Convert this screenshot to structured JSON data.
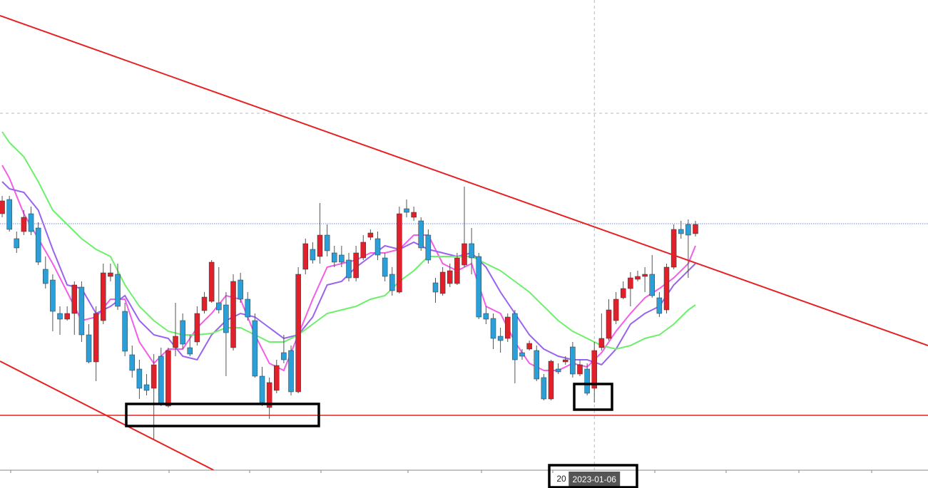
{
  "chart_data": {
    "type": "candlestick",
    "up_color": "#e0202a",
    "down_color": "#2a9fd8",
    "ylim": [
      0,
      685
    ],
    "xlim": [
      -0.3,
      128.2
    ],
    "open": [
      385,
      405,
      350,
      360,
      385,
      365,
      307,
      292,
      245,
      237,
      245,
      282,
      215,
      177,
      235,
      297,
      300,
      248,
      187,
      167,
      145,
      140,
      185,
      115,
      197,
      235,
      197,
      205,
      249,
      262,
      260,
      257,
      197,
      292,
      265,
      235,
      157,
      113,
      137,
      190,
      193,
      135,
      307,
      335,
      325,
      355,
      330,
      327,
      320,
      295,
      323,
      352,
      350,
      323,
      300,
      275,
      392,
      380,
      375,
      355,
      288,
      273,
      287,
      287,
      313,
      343,
      325,
      245,
      238,
      213,
      210,
      245,
      190,
      195,
      193,
      155,
      125,
      167,
      177,
      198,
      160,
      167,
      140,
      197,
      210,
      235,
      267,
      280,
      293,
      297,
      300,
      267,
      250,
      310,
      363,
      370,
      357
    ],
    "high": [
      410,
      410,
      360,
      390,
      395,
      373,
      325,
      300,
      255,
      255,
      290,
      290,
      230,
      255,
      315,
      315,
      315,
      260,
      200,
      180,
      160,
      188,
      197,
      197,
      260,
      245,
      215,
      255,
      275,
      320,
      310,
      275,
      300,
      302,
      275,
      245,
      170,
      155,
      180,
      215,
      200,
      310,
      350,
      345,
      400,
      370,
      340,
      340,
      330,
      340,
      355,
      363,
      360,
      330,
      310,
      395,
      405,
      395,
      380,
      363,
      295,
      310,
      315,
      330,
      423,
      365,
      330,
      255,
      245,
      225,
      245,
      250,
      195,
      207,
      200,
      160,
      180,
      175,
      185,
      205,
      180,
      175,
      205,
      245,
      265,
      275,
      290,
      303,
      305,
      310,
      327,
      275,
      315,
      370,
      375,
      377,
      375
    ],
    "low": [
      380,
      360,
      330,
      355,
      355,
      313,
      280,
      220,
      215,
      235,
      215,
      205,
      175,
      150,
      230,
      290,
      250,
      185,
      155,
      125,
      130,
      67,
      115,
      113,
      185,
      195,
      185,
      200,
      245,
      260,
      245,
      157,
      193,
      260,
      235,
      155,
      115,
      97,
      133,
      175,
      130,
      133,
      300,
      315,
      315,
      325,
      310,
      310,
      290,
      290,
      320,
      348,
      320,
      290,
      270,
      273,
      380,
      375,
      333,
      315,
      260,
      270,
      282,
      285,
      310,
      300,
      237,
      230,
      195,
      190,
      205,
      147,
      180,
      193,
      150,
      123,
      123,
      160,
      173,
      155,
      157,
      130,
      120,
      193,
      207,
      230,
      265,
      255,
      290,
      275,
      267,
      240,
      245,
      307,
      350,
      295,
      353
    ],
    "close": [
      403,
      363,
      337,
      380,
      360,
      317,
      287,
      248,
      237,
      245,
      285,
      215,
      177,
      245,
      302,
      302,
      255,
      192,
      165,
      140,
      137,
      173,
      118,
      193,
      213,
      202,
      188,
      245,
      268,
      317,
      250,
      218,
      290,
      265,
      240,
      157,
      120,
      148,
      172,
      180,
      135,
      300,
      343,
      320,
      355,
      333,
      317,
      317,
      295,
      330,
      345,
      358,
      327,
      297,
      277,
      385,
      387,
      387,
      337,
      320,
      275,
      303,
      305,
      323,
      343,
      323,
      240,
      237,
      210,
      207,
      240,
      180,
      185,
      203,
      153,
      125,
      178,
      163,
      180,
      160,
      173,
      133,
      193,
      210,
      250,
      265,
      280,
      295,
      297,
      300,
      270,
      245,
      310,
      363,
      357,
      355,
      370
    ],
    "series": [
      {
        "color": "#f25ee8",
        "x": [
          0,
          1,
          3,
          5,
          7,
          9,
          11,
          13,
          15,
          17,
          19,
          21,
          23,
          25,
          27,
          29,
          31,
          33,
          35,
          37,
          39,
          41,
          43,
          45,
          47,
          49,
          51,
          53,
          55,
          57,
          59,
          61,
          63,
          65,
          67,
          69,
          71,
          73,
          75,
          77,
          79,
          81,
          83,
          85,
          87,
          89,
          91,
          93,
          95,
          96
        ],
        "values": [
          453,
          435,
          385,
          350,
          315,
          275,
          235,
          240,
          265,
          265,
          205,
          175,
          195,
          195,
          225,
          245,
          270,
          265,
          215,
          175,
          165,
          215,
          265,
          310,
          315,
          320,
          330,
          330,
          335,
          355,
          355,
          315,
          305,
          315,
          255,
          245,
          205,
          175,
          165,
          165,
          175,
          170,
          190,
          220,
          245,
          267,
          280,
          295,
          315,
          340
        ]
      },
      {
        "color": "#9a62ee",
        "x": [
          0,
          1,
          3,
          5,
          7,
          9,
          11,
          13,
          15,
          17,
          19,
          21,
          23,
          25,
          27,
          29,
          31,
          33,
          35,
          37,
          39,
          41,
          43,
          45,
          47,
          49,
          51,
          53,
          55,
          57,
          59,
          61,
          63,
          65,
          67,
          69,
          71,
          73,
          75,
          77,
          79,
          81,
          83,
          85,
          87,
          89,
          91,
          93,
          95,
          96
        ],
        "values": [
          430,
          420,
          415,
          390,
          335,
          285,
          280,
          245,
          255,
          270,
          235,
          215,
          210,
          185,
          180,
          215,
          235,
          245,
          240,
          225,
          210,
          215,
          240,
          285,
          290,
          310,
          325,
          340,
          335,
          345,
          335,
          330,
          325,
          330,
          310,
          275,
          245,
          215,
          195,
          185,
          180,
          180,
          173,
          195,
          230,
          245,
          255,
          285,
          305,
          315
        ]
      },
      {
        "color": "#6cf06a",
        "x": [
          0,
          1,
          3,
          5,
          7,
          9,
          11,
          13,
          15,
          17,
          19,
          21,
          23,
          25,
          27,
          29,
          31,
          33,
          35,
          37,
          39,
          41,
          43,
          45,
          47,
          49,
          51,
          53,
          55,
          57,
          59,
          61,
          63,
          65,
          67,
          69,
          71,
          73,
          75,
          77,
          79,
          81,
          83,
          85,
          87,
          89,
          91,
          93,
          95,
          96
        ],
        "values": [
          500,
          485,
          465,
          430,
          390,
          370,
          350,
          335,
          325,
          285,
          255,
          235,
          220,
          215,
          215,
          217,
          225,
          225,
          215,
          205,
          205,
          215,
          230,
          245,
          250,
          255,
          265,
          270,
          290,
          305,
          325,
          325,
          325,
          325,
          315,
          305,
          290,
          275,
          255,
          235,
          220,
          210,
          200,
          195,
          200,
          210,
          215,
          230,
          250,
          257
        ]
      }
    ],
    "trendlines": [
      {
        "color": "#e52222",
        "x": [
          -0.3,
          128.2
        ],
        "values": [
          663,
          200
        ]
      },
      {
        "color": "#e52222",
        "x": [
          -0.3,
          29.3
        ],
        "values": [
          178,
          25
        ]
      }
    ],
    "hlines": [
      {
        "value": 102,
        "color": "#e52222",
        "style": "solid"
      },
      {
        "value": 371,
        "color": "#6a8ef0",
        "style": "dotted"
      },
      {
        "value": 526,
        "color": "#b8b8b8",
        "style": "dashed"
      }
    ],
    "crosshair": {
      "x": 82,
      "label": "2023-01-06"
    },
    "x_tick_labels": [
      "20"
    ]
  }
}
